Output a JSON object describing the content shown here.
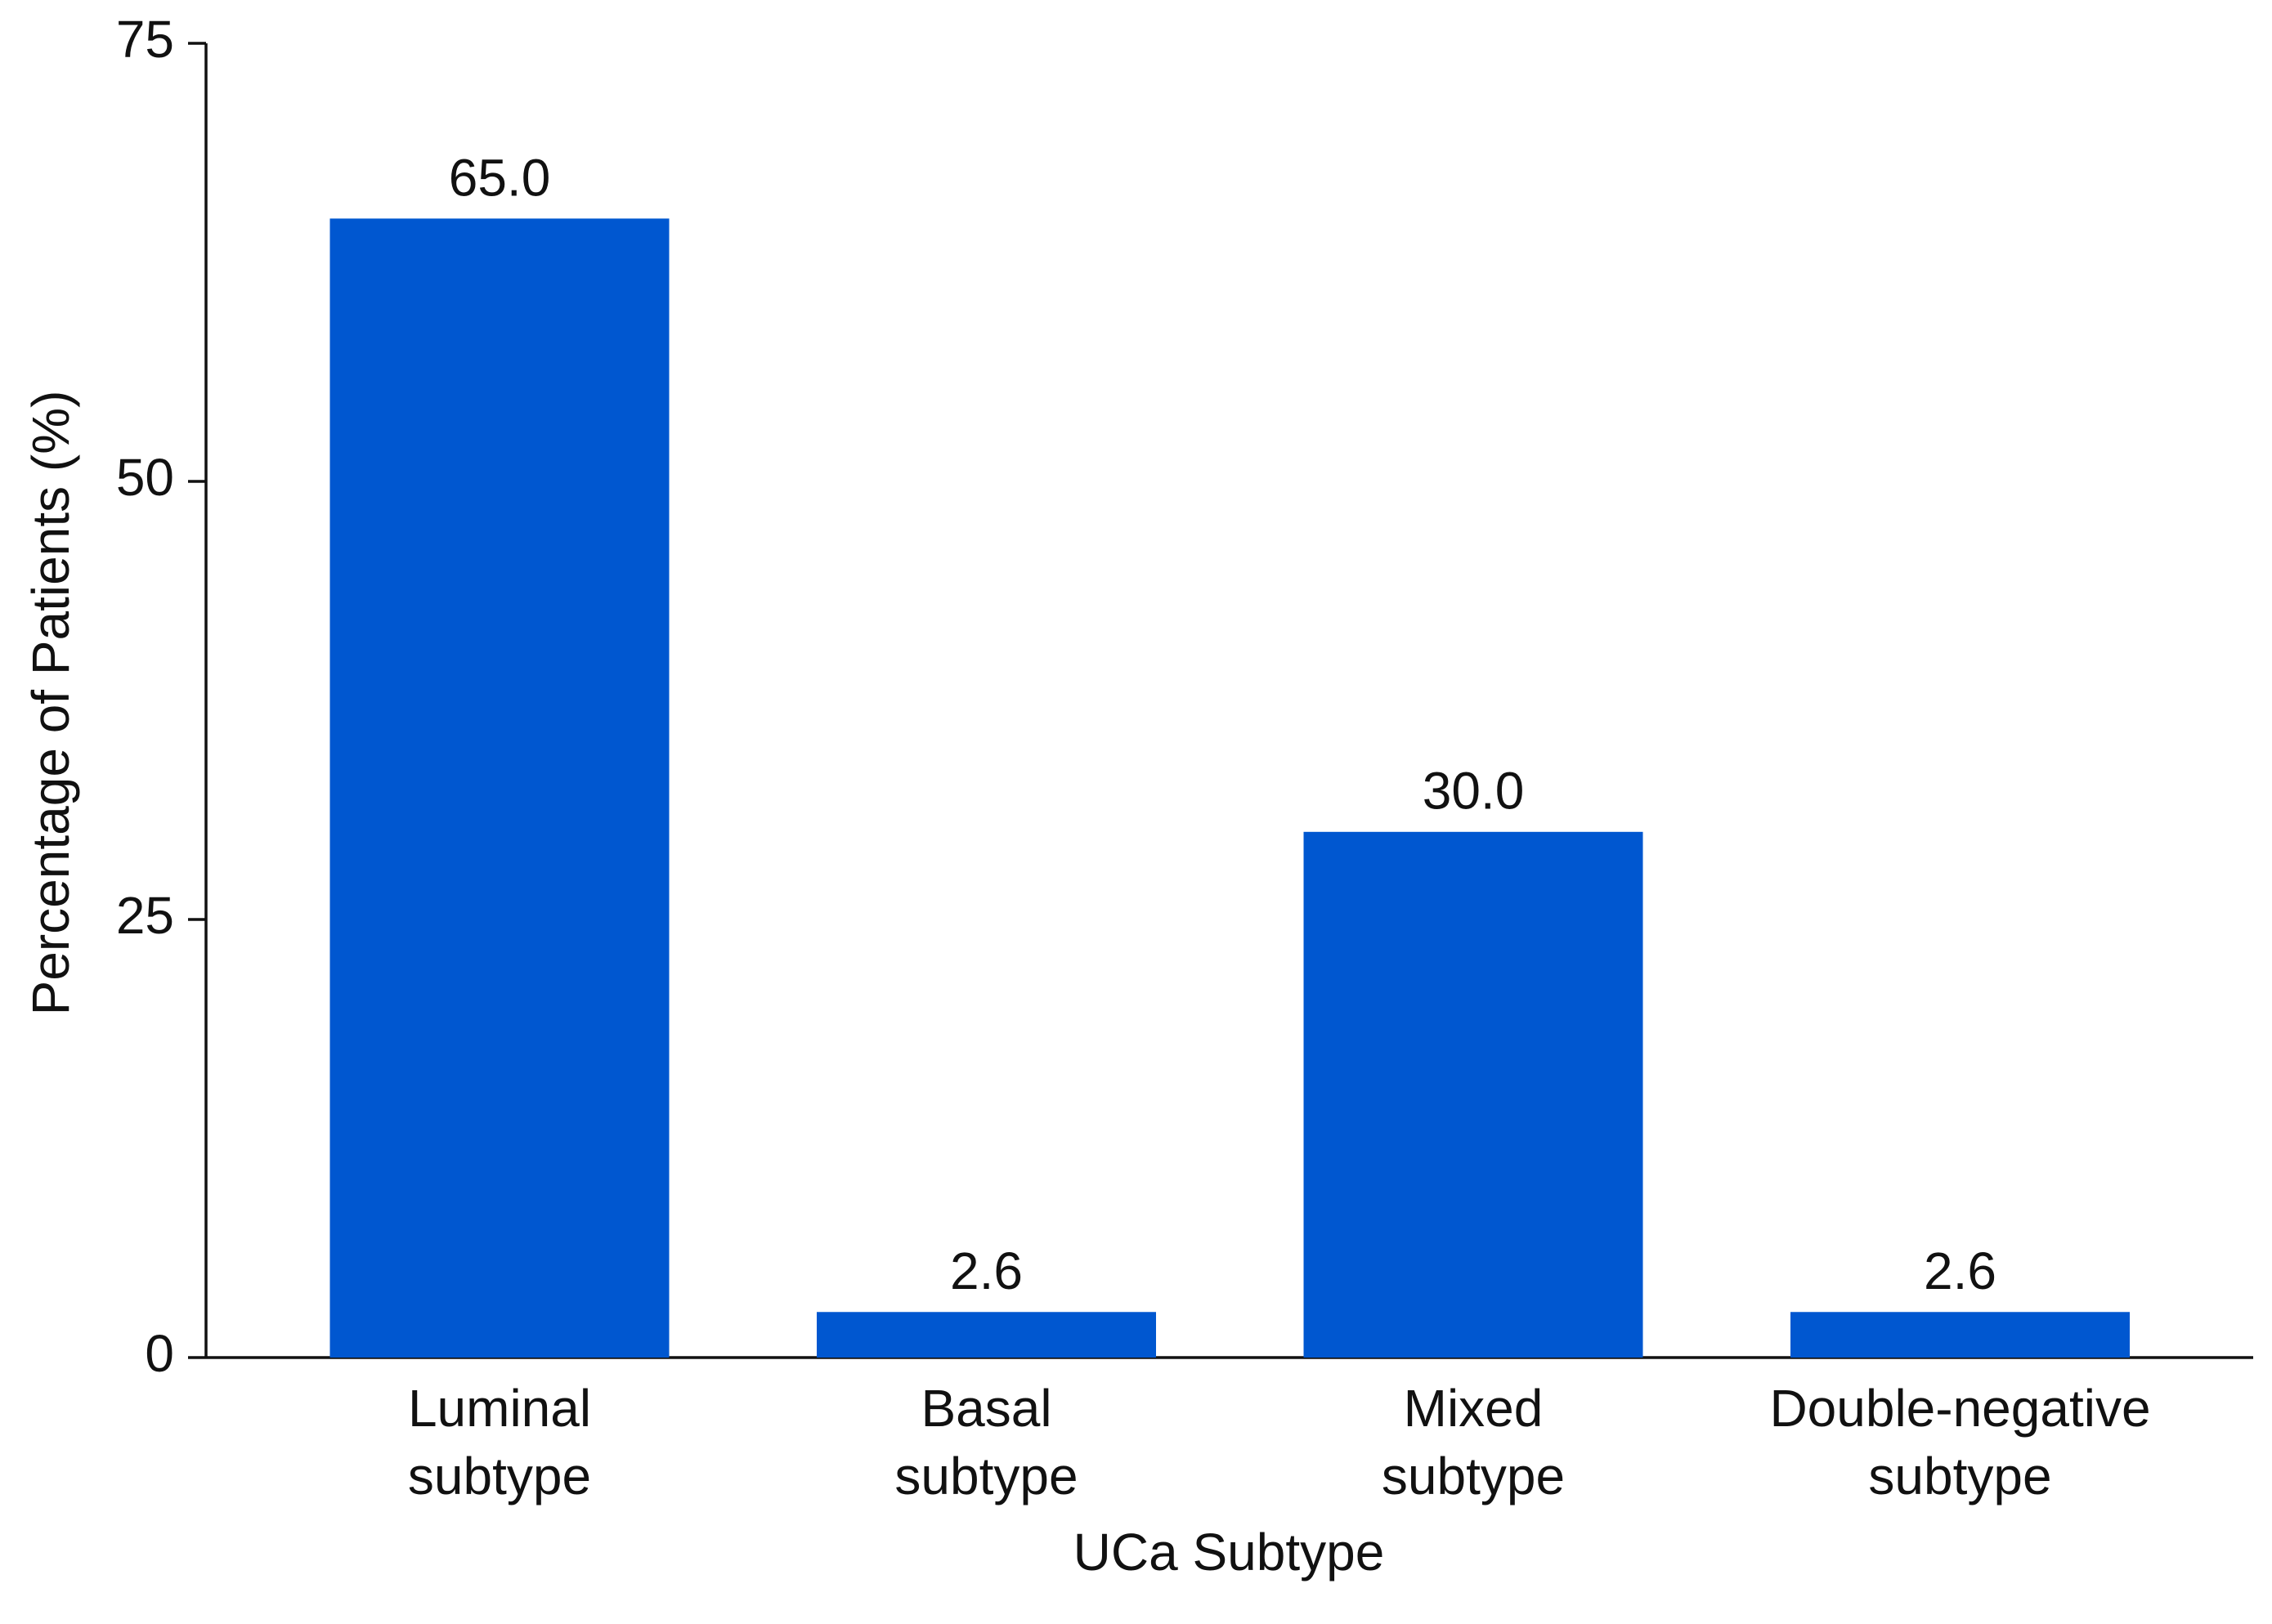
{
  "chart_data": {
    "type": "bar",
    "x_label": "UCa Subtype",
    "y_label": "Percentage of Patients (%)",
    "categories": [
      "Luminal subtype",
      "Basal subtype",
      "Mixed subtype",
      "Double-negative subtype"
    ],
    "values": [
      65.0,
      2.6,
      30.0,
      2.6
    ],
    "value_labels": [
      "65.0",
      "2.6",
      "30.0",
      "2.6"
    ],
    "color": "#0057d0",
    "ylim": [
      0,
      75
    ],
    "yticks": [
      0,
      25,
      50,
      75
    ],
    "grid": false
  }
}
